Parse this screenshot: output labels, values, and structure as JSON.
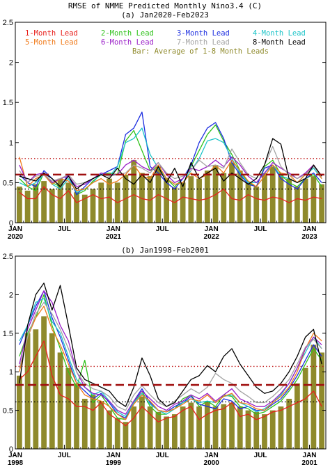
{
  "figure": {
    "title": "RMSE of NMME Predicted Monthly Nino3.4 (C)"
  },
  "legend": {
    "items": [
      {
        "label": "1-Month Lead",
        "color": "#e8201c"
      },
      {
        "label": "2-Month Lead",
        "color": "#2fc21a"
      },
      {
        "label": "3-Month Lead",
        "color": "#1c2ee0"
      },
      {
        "label": "4-Month Lead",
        "color": "#1cc4c8"
      },
      {
        "label": "5-Month Lead",
        "color": "#f07a1a"
      },
      {
        "label": "6-Month Lead",
        "color": "#9a1ec8"
      },
      {
        "label": "7-Month Lead",
        "color": "#a3a3a3"
      },
      {
        "label": "8-Month Lead",
        "color": "#000000"
      }
    ],
    "bar_label": "Bar: Average of 1-8 Month Leads",
    "bar_color": "#8f8a2c"
  },
  "chart_data": [
    {
      "type": "bar",
      "title": "(a) Jan2020-Feb2023",
      "ylim": [
        0,
        2.5
      ],
      "yticks": [
        "0",
        "0.5",
        "1",
        "1.5",
        "2",
        "2.5"
      ],
      "xticks": [
        {
          "month": 0,
          "line1": "JAN",
          "line2": "2020"
        },
        {
          "month": 6,
          "line1": "JUL",
          "line2": ""
        },
        {
          "month": 12,
          "line1": "JAN",
          "line2": "2021"
        },
        {
          "month": 18,
          "line1": "JUL",
          "line2": ""
        },
        {
          "month": 24,
          "line1": "JAN",
          "line2": "2022"
        },
        {
          "month": 30,
          "line1": "JUL",
          "line2": ""
        },
        {
          "month": 36,
          "line1": "JAN",
          "line2": "2023"
        }
      ],
      "bars": [
        0.45,
        0.4,
        0.48,
        0.52,
        0.42,
        0.55,
        0.5,
        0.38,
        0.35,
        0.42,
        0.5,
        0.55,
        0.5,
        0.6,
        0.78,
        0.62,
        0.58,
        0.7,
        0.56,
        0.44,
        0.5,
        0.58,
        0.55,
        0.65,
        0.72,
        0.62,
        0.75,
        0.65,
        0.5,
        0.45,
        0.62,
        0.7,
        0.6,
        0.55,
        0.45,
        0.55,
        0.58,
        0.48
      ],
      "mean_line": 0.6,
      "upper_line": 0.8,
      "lower_line": 0.42,
      "series": [
        {
          "values": [
            0.38,
            0.3,
            0.3,
            0.45,
            0.35,
            0.3,
            0.4,
            0.25,
            0.3,
            0.35,
            0.3,
            0.32,
            0.25,
            0.3,
            0.35,
            0.3,
            0.28,
            0.35,
            0.3,
            0.25,
            0.32,
            0.3,
            0.28,
            0.3,
            0.35,
            0.42,
            0.3,
            0.28,
            0.35,
            0.3,
            0.28,
            0.32,
            0.3,
            0.25,
            0.3,
            0.28,
            0.32,
            0.3
          ]
        },
        {
          "values": [
            0.55,
            0.45,
            0.4,
            0.62,
            0.5,
            0.45,
            0.6,
            0.35,
            0.4,
            0.52,
            0.6,
            0.62,
            0.6,
            1.02,
            1.15,
            0.9,
            0.65,
            0.7,
            0.55,
            0.45,
            0.55,
            0.7,
            0.9,
            1.1,
            1.22,
            1.02,
            0.85,
            0.65,
            0.5,
            0.45,
            0.7,
            0.78,
            0.6,
            0.5,
            0.45,
            0.55,
            0.6,
            0.45
          ]
        },
        {
          "values": [
            0.6,
            0.5,
            0.45,
            0.65,
            0.55,
            0.45,
            0.6,
            0.35,
            0.45,
            0.55,
            0.6,
            0.65,
            0.7,
            1.1,
            1.18,
            1.38,
            0.7,
            0.62,
            0.5,
            0.42,
            0.55,
            0.72,
            1.0,
            1.18,
            1.25,
            1.05,
            0.75,
            0.6,
            0.48,
            0.45,
            0.68,
            0.72,
            0.55,
            0.48,
            0.42,
            0.55,
            0.62,
            0.5
          ]
        },
        {
          "values": [
            0.5,
            0.45,
            0.5,
            0.6,
            0.48,
            0.42,
            0.55,
            0.38,
            0.42,
            0.5,
            0.62,
            0.58,
            0.7,
            1.0,
            1.05,
            1.18,
            0.85,
            0.68,
            0.55,
            0.48,
            0.5,
            0.65,
            0.8,
            1.02,
            1.05,
            1.0,
            0.8,
            0.62,
            0.5,
            0.5,
            0.62,
            0.72,
            0.58,
            0.55,
            0.5,
            0.6,
            0.68,
            0.55
          ]
        },
        {
          "values": [
            0.82,
            0.45,
            0.55,
            0.6,
            0.48,
            0.55,
            0.52,
            0.4,
            0.42,
            0.5,
            0.55,
            0.48,
            0.52,
            0.6,
            0.72,
            0.58,
            0.55,
            0.72,
            0.55,
            0.48,
            0.5,
            0.62,
            0.55,
            0.6,
            0.72,
            0.62,
            0.78,
            0.65,
            0.52,
            0.45,
            0.58,
            0.72,
            0.62,
            0.6,
            0.5,
            0.6,
            0.72,
            0.55
          ]
        },
        {
          "values": [
            0.72,
            0.5,
            0.6,
            0.62,
            0.5,
            0.55,
            0.58,
            0.45,
            0.48,
            0.55,
            0.62,
            0.6,
            0.6,
            0.72,
            0.78,
            0.7,
            0.65,
            0.75,
            0.6,
            0.5,
            0.55,
            0.68,
            0.65,
            0.7,
            0.78,
            0.7,
            0.82,
            0.72,
            0.58,
            0.5,
            0.62,
            0.75,
            0.68,
            0.62,
            0.55,
            0.62,
            0.72,
            0.58
          ]
        },
        {
          "values": [
            0.65,
            0.5,
            0.58,
            0.6,
            0.52,
            0.55,
            0.6,
            0.48,
            0.5,
            0.55,
            0.6,
            0.58,
            0.6,
            0.62,
            0.72,
            0.68,
            0.62,
            0.75,
            0.62,
            0.55,
            0.58,
            0.65,
            0.78,
            0.7,
            0.72,
            0.68,
            0.92,
            0.75,
            0.6,
            0.55,
            0.72,
            0.95,
            0.7,
            0.6,
            0.55,
            0.6,
            0.7,
            0.58
          ]
        },
        {
          "values": [
            0.58,
            0.55,
            0.52,
            0.62,
            0.55,
            0.45,
            0.58,
            0.42,
            0.5,
            0.55,
            0.6,
            0.55,
            0.68,
            0.55,
            0.48,
            0.6,
            0.5,
            0.7,
            0.5,
            0.68,
            0.45,
            0.75,
            0.55,
            0.62,
            0.68,
            0.52,
            0.62,
            0.55,
            0.48,
            0.55,
            0.72,
            1.05,
            0.98,
            0.55,
            0.5,
            0.55,
            0.72,
            0.58
          ]
        }
      ]
    },
    {
      "type": "bar",
      "title": "(b) Jan1998-Feb2001",
      "ylim": [
        0,
        2.5
      ],
      "yticks": [
        "0",
        "0.5",
        "1",
        "1.5",
        "2",
        "2.5"
      ],
      "xticks": [
        {
          "month": 0,
          "line1": "JAN",
          "line2": "1998"
        },
        {
          "month": 6,
          "line1": "JUL",
          "line2": ""
        },
        {
          "month": 12,
          "line1": "JAN",
          "line2": "1999"
        },
        {
          "month": 18,
          "line1": "JUL",
          "line2": ""
        },
        {
          "month": 24,
          "line1": "JAN",
          "line2": "2000"
        },
        {
          "month": 30,
          "line1": "JUL",
          "line2": ""
        },
        {
          "month": 36,
          "line1": "JAN",
          "line2": "2001"
        }
      ],
      "bars": [
        0.95,
        1.5,
        1.55,
        1.72,
        1.5,
        1.25,
        1.05,
        0.85,
        0.65,
        0.7,
        0.62,
        0.5,
        0.4,
        0.35,
        0.55,
        0.68,
        0.55,
        0.48,
        0.42,
        0.45,
        0.55,
        0.6,
        0.55,
        0.62,
        0.55,
        0.58,
        0.6,
        0.55,
        0.5,
        0.48,
        0.45,
        0.5,
        0.55,
        0.65,
        0.85,
        1.05,
        1.35,
        1.25
      ],
      "mean_line": 0.83,
      "upper_line": 1.07,
      "lower_line": 0.61,
      "series": [
        {
          "values": [
            0.9,
            1.0,
            1.2,
            1.4,
            0.95,
            0.7,
            0.65,
            0.55,
            0.55,
            0.5,
            0.6,
            0.45,
            0.38,
            0.3,
            0.4,
            0.55,
            0.45,
            0.35,
            0.4,
            0.42,
            0.5,
            0.55,
            0.38,
            0.45,
            0.5,
            0.52,
            0.6,
            0.42,
            0.45,
            0.38,
            0.42,
            0.48,
            0.5,
            0.55,
            0.6,
            0.65,
            0.75,
            0.55
          ]
        },
        {
          "values": [
            1.2,
            1.5,
            1.7,
            2.0,
            1.6,
            1.3,
            1.0,
            0.8,
            1.15,
            0.6,
            0.7,
            0.55,
            0.4,
            0.38,
            0.6,
            0.75,
            0.55,
            0.45,
            0.45,
            0.52,
            0.65,
            0.7,
            0.55,
            0.62,
            0.55,
            0.7,
            0.68,
            0.55,
            0.52,
            0.45,
            0.48,
            0.55,
            0.62,
            0.75,
            0.9,
            1.1,
            1.3,
            1.15
          ]
        },
        {
          "values": [
            1.35,
            1.6,
            1.85,
            2.05,
            1.7,
            1.45,
            1.15,
            0.85,
            0.75,
            0.65,
            0.72,
            0.6,
            0.45,
            0.4,
            0.62,
            0.78,
            0.6,
            0.5,
            0.48,
            0.55,
            0.6,
            0.68,
            0.58,
            0.55,
            0.52,
            0.65,
            0.62,
            0.52,
            0.55,
            0.5,
            0.5,
            0.58,
            0.65,
            0.78,
            0.95,
            1.15,
            1.35,
            1.2
          ]
        },
        {
          "values": [
            1.4,
            1.6,
            1.9,
            1.95,
            1.65,
            1.5,
            1.2,
            0.9,
            0.8,
            0.7,
            0.75,
            0.62,
            0.48,
            0.42,
            0.6,
            0.72,
            0.58,
            0.5,
            0.45,
            0.52,
            0.6,
            0.65,
            0.6,
            0.62,
            0.6,
            0.68,
            0.7,
            0.6,
            0.55,
            0.48,
            0.52,
            0.6,
            0.7,
            0.85,
            1.05,
            1.25,
            1.45,
            1.3
          ]
        },
        {
          "values": [
            1.0,
            1.45,
            1.7,
            1.85,
            1.55,
            1.35,
            1.1,
            0.85,
            0.7,
            0.65,
            0.62,
            0.55,
            0.45,
            0.38,
            0.58,
            0.7,
            0.62,
            0.5,
            0.48,
            0.52,
            0.58,
            0.65,
            0.62,
            0.7,
            0.6,
            0.68,
            0.72,
            0.6,
            0.58,
            0.52,
            0.5,
            0.6,
            0.68,
            0.8,
            1.0,
            1.3,
            1.5,
            1.4
          ]
        },
        {
          "values": [
            1.1,
            1.55,
            1.8,
            2.05,
            1.9,
            1.6,
            1.4,
            1.0,
            0.8,
            0.72,
            0.7,
            0.62,
            0.5,
            0.45,
            0.62,
            0.75,
            0.65,
            0.55,
            0.5,
            0.58,
            0.62,
            0.7,
            0.65,
            0.72,
            0.62,
            0.7,
            0.78,
            0.65,
            0.6,
            0.55,
            0.55,
            0.62,
            0.72,
            0.85,
            1.05,
            1.3,
            1.45,
            1.35
          ]
        },
        {
          "values": [
            1.05,
            1.45,
            1.75,
            1.9,
            1.75,
            1.55,
            1.3,
            1.0,
            0.85,
            0.78,
            0.75,
            0.68,
            0.55,
            0.5,
            0.7,
            0.82,
            0.7,
            0.6,
            0.55,
            0.62,
            0.7,
            0.78,
            0.72,
            0.8,
            0.98,
            0.9,
            0.85,
            0.75,
            0.68,
            0.6,
            0.6,
            0.68,
            0.78,
            0.9,
            1.1,
            1.32,
            1.42,
            1.3
          ]
        },
        {
          "values": [
            0.85,
            1.6,
            2.0,
            2.15,
            1.8,
            2.12,
            1.6,
            1.05,
            0.9,
            0.85,
            0.8,
            0.75,
            0.62,
            0.55,
            0.8,
            1.18,
            0.95,
            0.65,
            0.55,
            0.6,
            0.75,
            0.9,
            0.95,
            1.08,
            1.0,
            1.2,
            1.3,
            1.1,
            0.95,
            0.8,
            0.72,
            0.75,
            0.85,
            1.0,
            1.2,
            1.45,
            1.55,
            1.1
          ]
        }
      ]
    }
  ]
}
